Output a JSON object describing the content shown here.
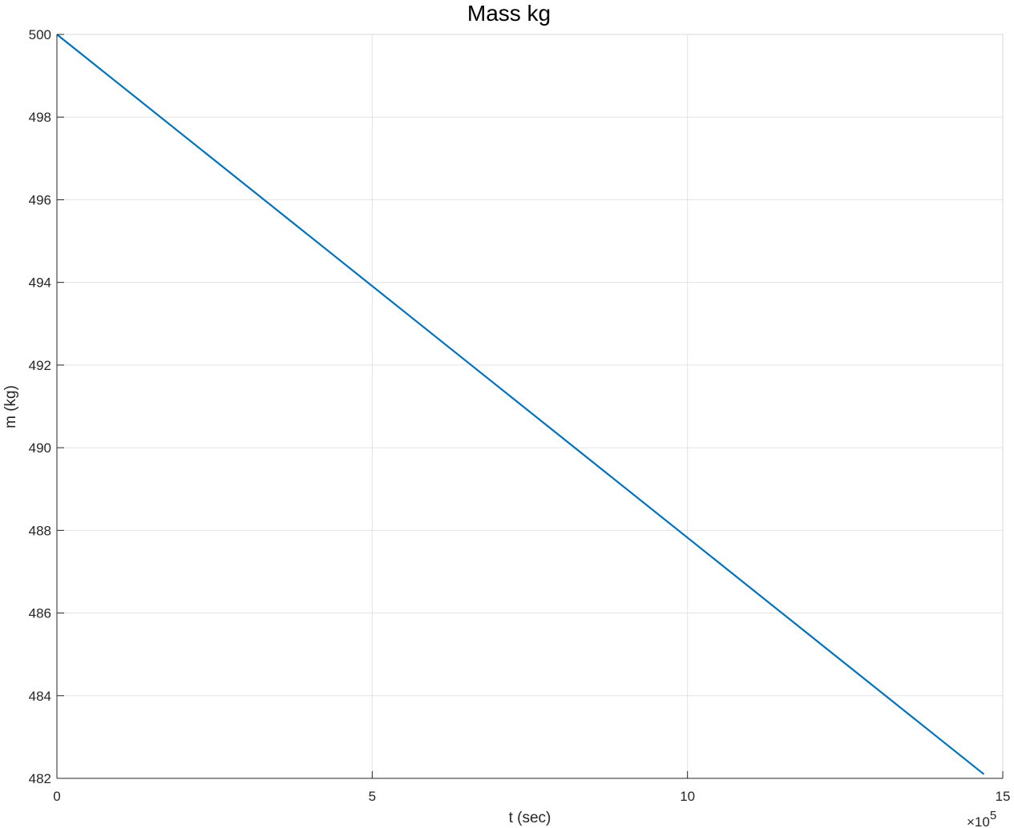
{
  "chart_data": {
    "type": "line",
    "title": "Mass kg",
    "xlabel": "t (sec)",
    "ylabel": "m (kg)",
    "x_exponent_times": "×10",
    "x_exponent_power": "5",
    "xlim": [
      0,
      15
    ],
    "ylim": [
      482,
      500
    ],
    "x_ticks": [
      0,
      5,
      10,
      15
    ],
    "y_ticks": [
      482,
      484,
      486,
      488,
      490,
      492,
      494,
      496,
      498,
      500
    ],
    "grid": true,
    "series": [
      {
        "color": "#0072BD",
        "x": [
          0,
          14.7
        ],
        "y": [
          500,
          482.1
        ]
      }
    ]
  }
}
